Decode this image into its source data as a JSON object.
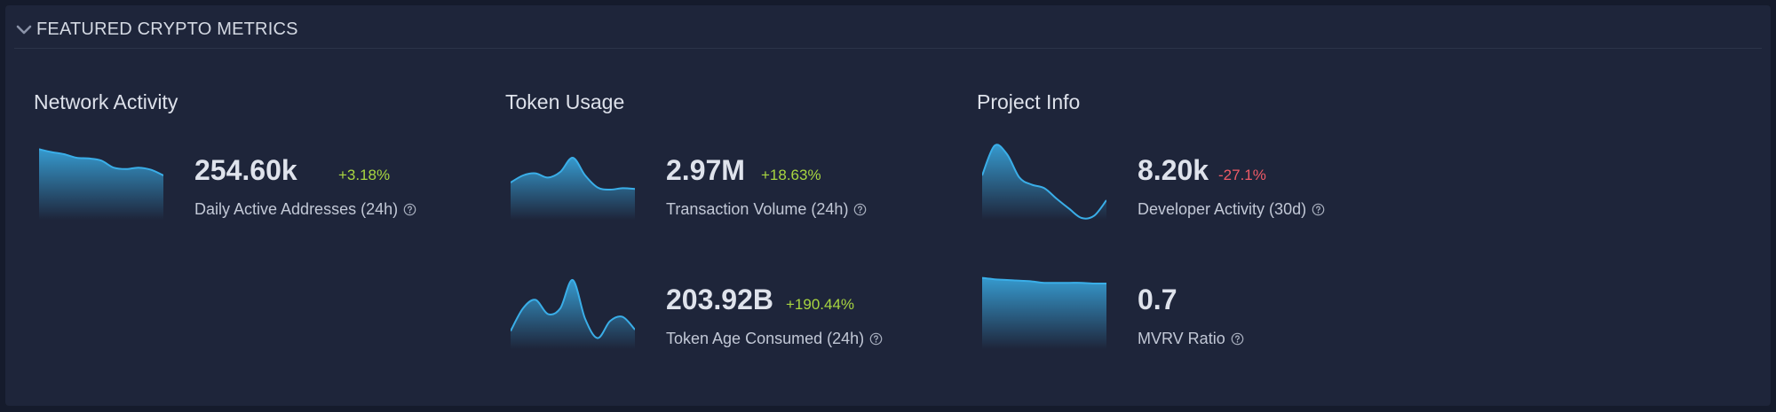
{
  "header": {
    "title": "FEATURED CRYPTO METRICS",
    "icon": "chevron-down-icon"
  },
  "groups": [
    {
      "title": "Network Activity"
    },
    {
      "title": "Token Usage"
    },
    {
      "title": "Project Info"
    }
  ],
  "metrics": {
    "daily_active_addresses": {
      "value": "254.60k",
      "change": "+3.18%",
      "label": "Daily Active Addresses (24h)",
      "trend": [
        0.92,
        0.88,
        0.85,
        0.8,
        0.79,
        0.76,
        0.66,
        0.64,
        0.66,
        0.63,
        0.55
      ]
    },
    "transaction_volume": {
      "value": "2.97M",
      "change": "+18.63%",
      "label": "Transaction Volume (24h)",
      "trend": [
        0.45,
        0.55,
        0.58,
        0.52,
        0.6,
        0.8,
        0.55,
        0.38,
        0.35,
        0.37,
        0.36
      ]
    },
    "token_age_consumed": {
      "value": "203.92B",
      "change": "+190.44%",
      "label": "Token Age Consumed (24h)",
      "trend": [
        0.18,
        0.5,
        0.62,
        0.42,
        0.5,
        0.9,
        0.35,
        0.08,
        0.32,
        0.38,
        0.2
      ]
    },
    "developer_activity": {
      "value": "8.20k",
      "change": "-27.1%",
      "label": "Developer Activity (30d)",
      "trend": [
        0.55,
        0.97,
        0.85,
        0.52,
        0.42,
        0.37,
        0.22,
        0.08,
        -0.05,
        -0.02,
        0.2
      ]
    },
    "mvrv_ratio": {
      "value": "0.7",
      "change": "",
      "label": "MVRV Ratio",
      "trend": [
        0.93,
        0.91,
        0.9,
        0.89,
        0.88,
        0.86,
        0.86,
        0.86,
        0.86,
        0.85,
        0.85
      ]
    }
  },
  "colors": {
    "positive": "#a8d640",
    "negative": "#ef5b67",
    "sparkline": "#3aaee8"
  }
}
